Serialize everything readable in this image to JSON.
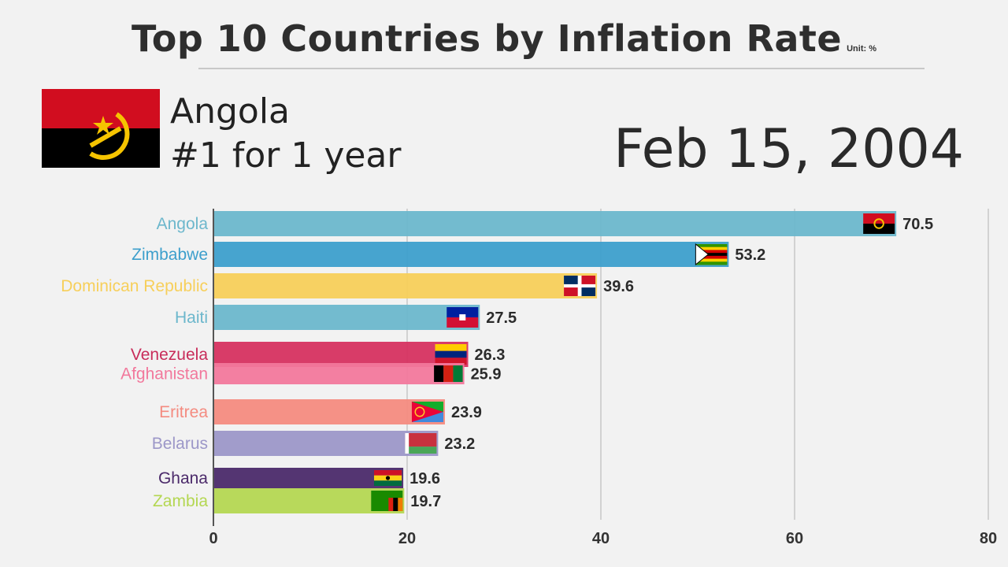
{
  "header": {
    "title": "Top 10 Countries by Inflation Rate",
    "unit": "Unit: %"
  },
  "leader": {
    "country": "Angola",
    "streak": "#1 for 1 year",
    "flag_icon": "angola-flag-icon"
  },
  "date": "Feb 15, 2004",
  "chart_data": {
    "type": "bar",
    "orientation": "horizontal",
    "title": "Top 10 Countries by Inflation Rate",
    "unit": "Unit: %",
    "xlim": [
      0,
      80
    ],
    "xticks": [
      0,
      20,
      40,
      60,
      80
    ],
    "xtick_labels": [
      "0",
      "20",
      "40",
      "60",
      "80"
    ],
    "grid": true,
    "categories": [
      "Angola",
      "Zimbabwe",
      "Dominican Republic",
      "Haiti",
      "Venezuela",
      "Afghanistan",
      "Eritrea",
      "Belarus",
      "Ghana",
      "Zambia"
    ],
    "values": [
      70.5,
      53.2,
      39.6,
      27.5,
      26.3,
      25.9,
      23.9,
      23.2,
      19.6,
      19.7
    ],
    "value_labels": [
      "70.5",
      "53.2",
      "39.6",
      "27.5",
      "26.3",
      "25.9",
      "23.9",
      "23.2",
      "19.6",
      "19.7"
    ],
    "colors": [
      "#6cb7cc",
      "#3d9fcc",
      "#f7cf5a",
      "#6cb7cc",
      "#d63260",
      "#f2789c",
      "#f48b80",
      "#9c97c8",
      "#4b2a6a",
      "#b4d752"
    ],
    "label_colors": [
      "#6cb7cc",
      "#3d9fcc",
      "#f7cf5a",
      "#6cb7cc",
      "#c82c5a",
      "#f2789c",
      "#f48b80",
      "#9c97c8",
      "#4b2a6a",
      "#b4d752"
    ],
    "flag_icons": [
      "angola-flag-icon",
      "zimbabwe-flag-icon",
      "dominican-republic-flag-icon",
      "haiti-flag-icon",
      "venezuela-flag-icon",
      "afghanistan-flag-icon",
      "eritrea-flag-icon",
      "belarus-flag-icon",
      "ghana-flag-icon",
      "zambia-flag-icon"
    ]
  }
}
